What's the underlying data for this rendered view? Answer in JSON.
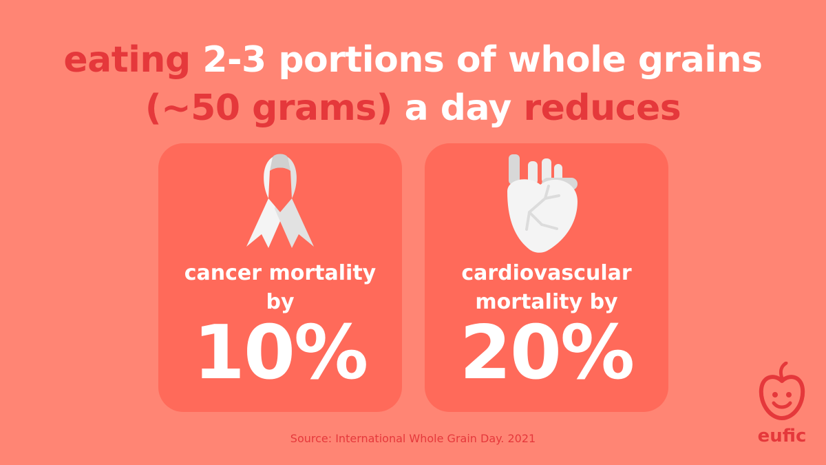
{
  "headline": {
    "line1": [
      {
        "text": "eating ",
        "style": "dark"
      },
      {
        "text": "2-3 portions of whole grains",
        "style": "white"
      }
    ],
    "line2": [
      {
        "text": "(~50 grams) ",
        "style": "dark"
      },
      {
        "text": "a day ",
        "style": "white"
      },
      {
        "text": "reduces",
        "style": "dark"
      }
    ]
  },
  "cards": [
    {
      "icon": "ribbon-icon",
      "label_lines": [
        "cancer mortality",
        "by"
      ],
      "value": "10%"
    },
    {
      "icon": "heart-icon",
      "label_lines": [
        "cardiovascular",
        "mortality by"
      ],
      "value": "20%"
    }
  ],
  "source": "Source: International Whole Grain Day. 2021",
  "logo": {
    "text": "eufic",
    "icon": "apple-face-icon"
  },
  "colors": {
    "background": "#FF8574",
    "card": "#FF6A5A",
    "accent_red": "#E5383B",
    "white": "#FFFFFF"
  }
}
